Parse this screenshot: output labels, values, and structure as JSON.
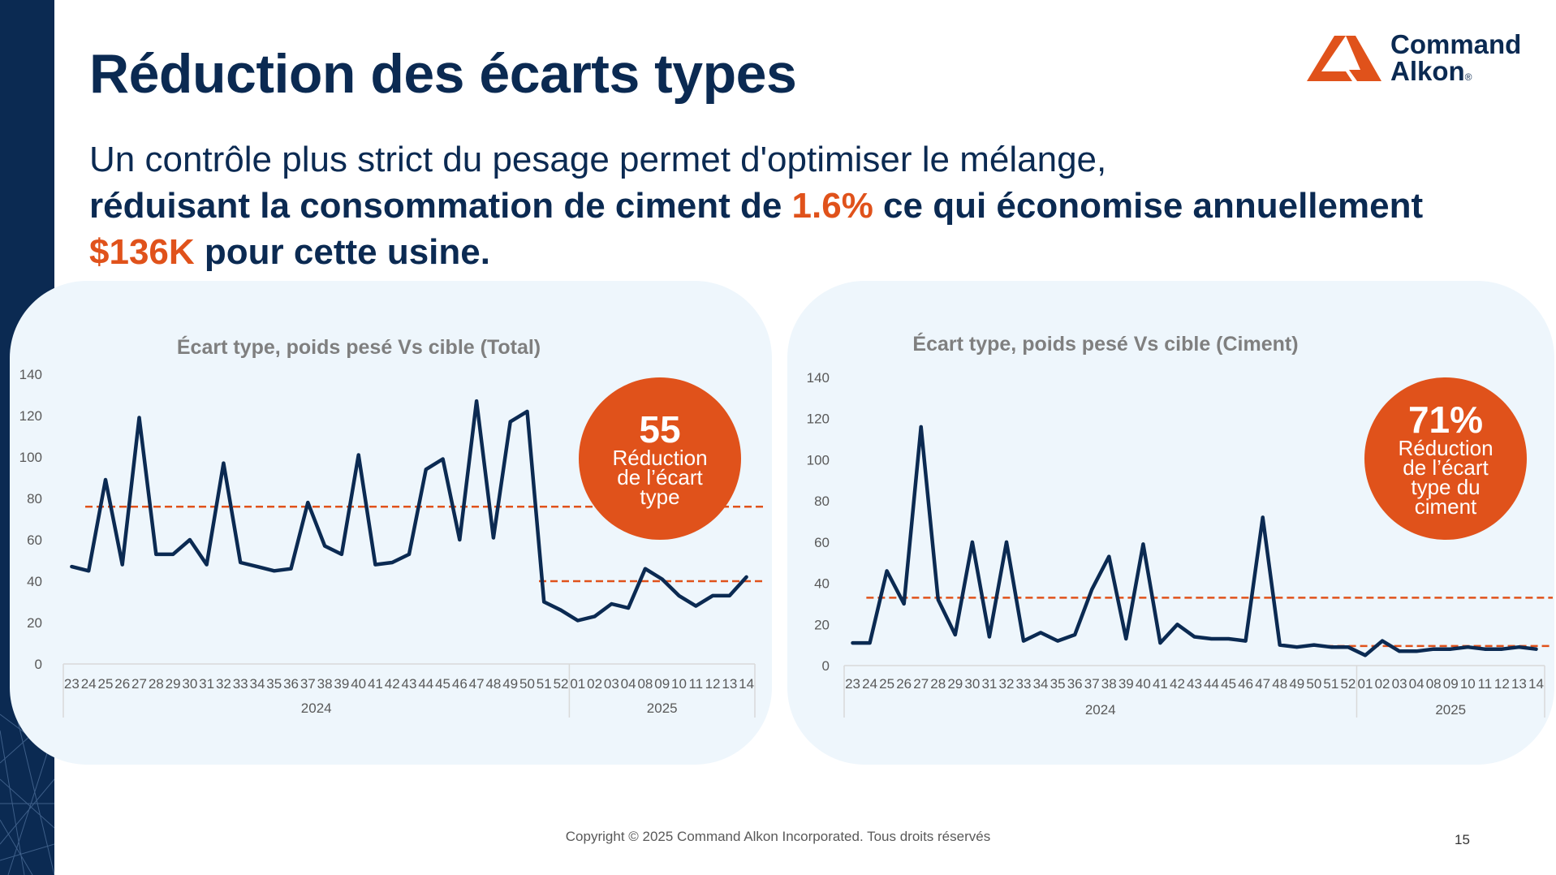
{
  "slide": {
    "title": "Réduction des écarts types",
    "subtitle_line1": "Un contrôle plus strict du pesage permet d'optimiser le mélange,",
    "subtitle_bold_a": "réduisant la consommation de ciment de ",
    "subtitle_pct": "1.6%",
    "subtitle_bold_b": " ce qui économise annuellement",
    "subtitle_amount": "$136K",
    "subtitle_bold_c": " pour cette usine.",
    "footer": "Copyright © 2025 Command Alkon Incorporated. Tous droits réservés",
    "page_number": "15"
  },
  "logo": {
    "line1": "Command",
    "line2": "Alkon",
    "reg": "®"
  },
  "colors": {
    "navy": "#0b2a52",
    "orange": "#e0521b",
    "panel": "#eef6fc",
    "line": "#0b2a52",
    "avg_line": "#e0521b"
  },
  "badges": [
    {
      "number": "55",
      "text": "Réduction de l’écart type"
    },
    {
      "number": "71%",
      "text": "Réduction de l’écart type du ciment"
    }
  ],
  "chart_data": [
    {
      "type": "line",
      "title": "Écart type, poids pesé Vs cible (Total)",
      "categories": [
        "23",
        "24",
        "25",
        "26",
        "27",
        "28",
        "29",
        "30",
        "31",
        "32",
        "33",
        "34",
        "35",
        "36",
        "37",
        "38",
        "39",
        "40",
        "41",
        "42",
        "43",
        "44",
        "45",
        "46",
        "47",
        "48",
        "49",
        "50",
        "51",
        "52",
        "01",
        "02",
        "03",
        "04",
        "08",
        "09",
        "10",
        "11",
        "12",
        "13",
        "14"
      ],
      "groups": [
        {
          "label": "2024",
          "count": 30
        },
        {
          "label": "2025",
          "count": 11
        }
      ],
      "series": [
        {
          "values": [
            47,
            45,
            89,
            48,
            119,
            53,
            53,
            60,
            48,
            97,
            49,
            47,
            45,
            46,
            78,
            57,
            53,
            101,
            48,
            49,
            53,
            94,
            99,
            60,
            127,
            61,
            117,
            122,
            30,
            26,
            21,
            23,
            29,
            27,
            46,
            41,
            33,
            28,
            33,
            33,
            42
          ]
        }
      ],
      "averages": [
        {
          "value": 76,
          "from": 0,
          "to": 40
        },
        {
          "value": 40,
          "from": 28,
          "to": 40
        }
      ],
      "ylim": [
        0,
        140
      ],
      "yticks": [
        0,
        20,
        40,
        60,
        80,
        100,
        120,
        140
      ],
      "grid": false
    },
    {
      "type": "line",
      "title": "Écart type, poids pesé Vs cible (Ciment)",
      "categories": [
        "23",
        "24",
        "25",
        "26",
        "27",
        "28",
        "29",
        "30",
        "31",
        "32",
        "33",
        "34",
        "35",
        "36",
        "37",
        "38",
        "39",
        "40",
        "41",
        "42",
        "43",
        "44",
        "45",
        "46",
        "47",
        "48",
        "49",
        "50",
        "51",
        "52",
        "01",
        "02",
        "03",
        "04",
        "08",
        "09",
        "10",
        "11",
        "12",
        "13",
        "14"
      ],
      "groups": [
        {
          "label": "2024",
          "count": 30
        },
        {
          "label": "2025",
          "count": 11
        }
      ],
      "series": [
        {
          "values": [
            11,
            11,
            46,
            30,
            116,
            32,
            15,
            60,
            14,
            60,
            12,
            16,
            12,
            15,
            37,
            53,
            13,
            59,
            11,
            20,
            14,
            13,
            13,
            12,
            72,
            10,
            9,
            10,
            9,
            9,
            5,
            12,
            7,
            7,
            8,
            8,
            9,
            8,
            8,
            9,
            8
          ]
        }
      ],
      "averages": [
        {
          "value": 33,
          "from": 0,
          "to": 40
        },
        {
          "value": 9.5,
          "from": 28,
          "to": 40
        }
      ],
      "ylim": [
        0,
        140
      ],
      "yticks": [
        0,
        20,
        40,
        60,
        80,
        100,
        120,
        140
      ],
      "grid": false
    }
  ]
}
